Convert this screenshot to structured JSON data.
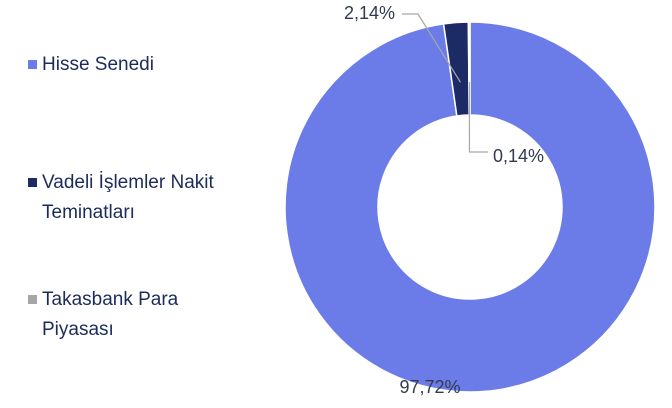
{
  "chart_data": {
    "type": "donut",
    "categories": [
      "Hisse Senedi",
      "Vadeli İşlemler Nakit Teminatları",
      "Takasbank Para Piyasası"
    ],
    "values": [
      97.72,
      2.14,
      0.14
    ],
    "value_labels": [
      "97,72%",
      "2,14%",
      "0,14%"
    ],
    "colors": [
      "#6b7be8",
      "#1c2b66",
      "#a6a6a6"
    ],
    "legend": "left"
  }
}
